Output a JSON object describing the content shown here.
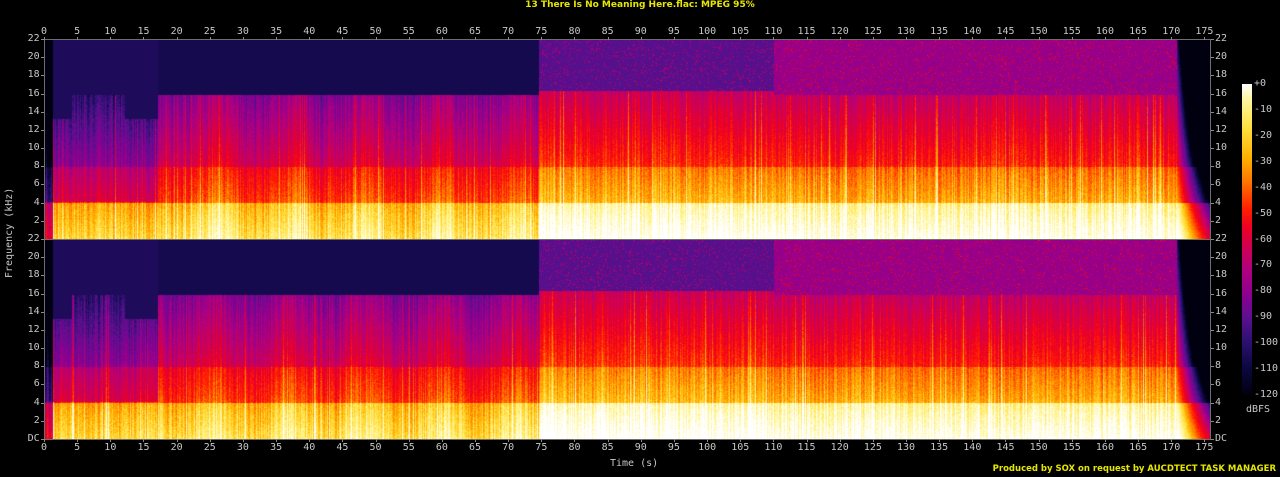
{
  "title": "13 There Is No Meaning Here.flac: MPEG 95%",
  "credit": "Produced by SOX on request by AUCDTECT TASK MANAGER",
  "colors": {
    "title_text": "#e6e600",
    "axis_text": "#c8c8c8",
    "background": "#000000",
    "axis_line": "#6e6e6e"
  },
  "axes": {
    "x_title": "Time (s)",
    "y_title": "Frequency (kHz)",
    "x_ticks": [
      "0",
      "5",
      "10",
      "15",
      "20",
      "25",
      "30",
      "35",
      "40",
      "45",
      "50",
      "55",
      "60",
      "65",
      "70",
      "75",
      "80",
      "85",
      "90",
      "95",
      "100",
      "105",
      "110",
      "115",
      "120",
      "125",
      "130",
      "135",
      "140",
      "145",
      "150",
      "155",
      "160",
      "165",
      "170",
      "175"
    ],
    "y_ticks_top": [
      "22",
      "20",
      "18",
      "16",
      "14",
      "12",
      "10",
      "8",
      "6",
      "4",
      "2"
    ],
    "y_ticks_bottom": [
      "22",
      "20",
      "18",
      "16",
      "14",
      "12",
      "10",
      "8",
      "6",
      "4",
      "2",
      "DC"
    ]
  },
  "legend": {
    "unit": "dBFS",
    "labels": [
      "+0",
      "-10",
      "-20",
      "-30",
      "-40",
      "-50",
      "-60",
      "-70",
      "-80",
      "-90",
      "-100",
      "-110",
      "-120"
    ]
  },
  "chart_data": {
    "type": "heatmap",
    "title": "13 There Is No Meaning Here.flac: MPEG 95%",
    "xlabel": "Time (s)",
    "ylabel": "Frequency (kHz)",
    "xlim": [
      0,
      176
    ],
    "ylim": [
      0,
      22
    ],
    "channels": 2,
    "colorbar": {
      "label": "dBFS",
      "range": [
        -120,
        0
      ],
      "ticks": [
        0,
        -10,
        -20,
        -30,
        -40,
        -50,
        -60,
        -70,
        -80,
        -90,
        -100,
        -110,
        -120
      ]
    },
    "observations": [
      {
        "time_range_s": [
          0,
          1.5
        ],
        "description": "fade-in, low energy across band"
      },
      {
        "time_range_s": [
          1.5,
          17
        ],
        "cutoff_khz": 13.3,
        "description": "intro with lowpass near 13-16 kHz, energy concentrated below 4 kHz"
      },
      {
        "time_range_s": [
          17,
          74.5
        ],
        "cutoff_khz": 16,
        "description": "verse section, dense energy below 4 kHz, red/orange up to ~12 kHz"
      },
      {
        "time_range_s": [
          74.5,
          110
        ],
        "cutoff_khz": 16.3,
        "description": "loud section, strong broadband content, transients reaching 22 kHz"
      },
      {
        "time_range_s": [
          110,
          171
        ],
        "cutoff_khz": 16,
        "description": "continued loud section with bright band below 4 kHz"
      },
      {
        "time_range_s": [
          171,
          176
        ],
        "description": "fade-out, energy decreases from high to low frequencies"
      }
    ],
    "verdict": "MPEG 95%"
  }
}
